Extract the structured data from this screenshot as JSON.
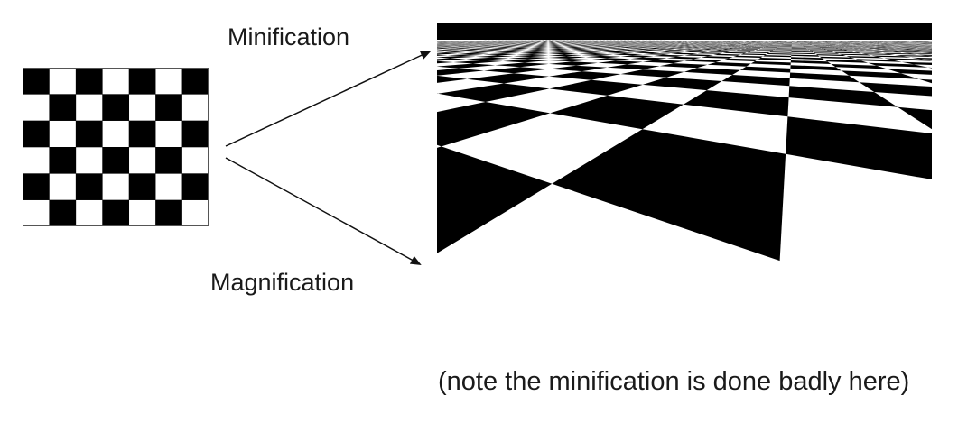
{
  "labels": {
    "minification": "Minification",
    "magnification": "Magnification",
    "caption": "(note the minification is done badly here)"
  },
  "texture": {
    "columns": 7,
    "rows": 6,
    "dark_color": "#000000",
    "light_color": "#ffffff"
  },
  "colors": {
    "text": "#1a1a1a",
    "arrow": "#111111",
    "plane_dark": "#000000",
    "plane_light": "#ffffff"
  }
}
